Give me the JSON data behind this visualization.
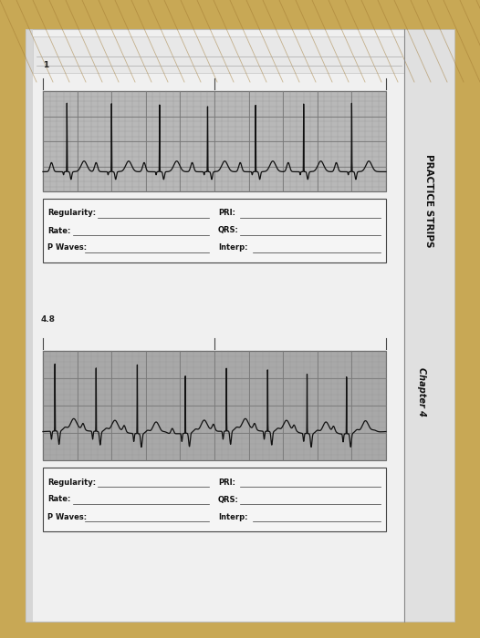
{
  "bg_wood": "#c8a855",
  "bg_wood2": "#b89040",
  "bg_page": "#dcdcdc",
  "bg_page2": "#e8e8e8",
  "bg_paper_white": "#f0f0f0",
  "ecg_bg": "#b8b8b8",
  "ecg_bg2": "#a8a8a8",
  "grid_minor": "#999999",
  "grid_major": "#777777",
  "ecg_line": "#111111",
  "label_color": "#111111",
  "form_bg": "#f5f5f5",
  "form_border": "#444444",
  "strip1_label": "1",
  "strip2_label": "4.8",
  "side_text_upper": "PRACTICE STRIPS",
  "side_text_lower": "Chapter 4",
  "form_labels_left": [
    "Regularity:",
    "Rate:",
    "P Waves:"
  ],
  "form_labels_right": [
    "PRI:",
    "QRS:",
    "Interp:"
  ]
}
